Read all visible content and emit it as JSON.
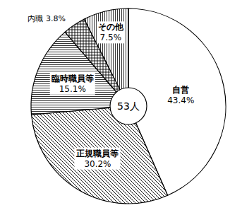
{
  "chart_data": {
    "type": "pie",
    "categories": [
      "自営",
      "正規職員等",
      "臨時職員等",
      "内職",
      "その他"
    ],
    "values": [
      43.4,
      30.2,
      15.1,
      3.8,
      7.5
    ],
    "value_labels": [
      "43.4%",
      "30.2%",
      "15.1%",
      "3.8%",
      "7.5%"
    ],
    "colors": [
      "#ffffff",
      "#ffffff",
      "#ffffff",
      "#ffffff",
      "#ffffff"
    ],
    "annotation": "53人",
    "data_labels": true
  }
}
